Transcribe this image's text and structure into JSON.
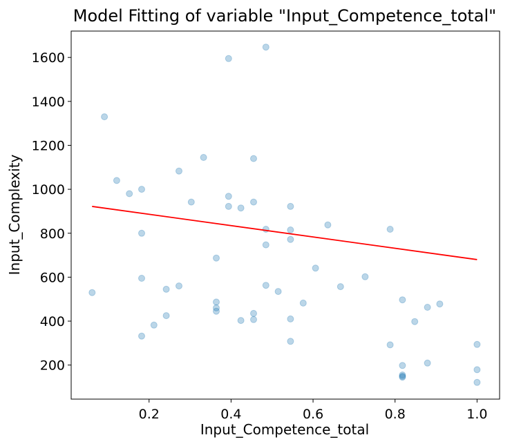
{
  "chart_data": {
    "type": "scatter",
    "title": "Model Fitting of  variable \"Input_Competence_total\"",
    "xlabel": "Input_Competence_total",
    "ylabel": "Input_Complexity",
    "xlim": [
      0.01,
      1.055
    ],
    "ylim": [
      45,
      1720
    ],
    "xticks": [
      0.2,
      0.4,
      0.6,
      0.8,
      1.0
    ],
    "xtick_labels": [
      "0.2",
      "0.4",
      "0.6",
      "0.8",
      "1.0"
    ],
    "yticks": [
      200,
      400,
      600,
      800,
      1000,
      1200,
      1400,
      1600
    ],
    "ytick_labels": [
      "200",
      "400",
      "600",
      "800",
      "1000",
      "1200",
      "1400",
      "1600"
    ],
    "grid": false,
    "points": {
      "x": [
        0.061,
        0.091,
        0.121,
        0.152,
        0.182,
        0.182,
        0.182,
        0.182,
        0.212,
        0.242,
        0.242,
        0.273,
        0.273,
        0.303,
        0.333,
        0.364,
        0.364,
        0.364,
        0.364,
        0.394,
        0.394,
        0.394,
        0.424,
        0.424,
        0.455,
        0.455,
        0.455,
        0.455,
        0.485,
        0.485,
        0.485,
        0.485,
        0.515,
        0.545,
        0.545,
        0.545,
        0.545,
        0.545,
        0.576,
        0.606,
        0.636,
        0.667,
        0.727,
        0.788,
        0.788,
        0.818,
        0.818,
        0.818,
        0.818,
        0.818,
        0.848,
        0.879,
        0.879,
        0.909,
        1.0,
        1.0,
        1.0
      ],
      "y": [
        530,
        1330,
        1040,
        980,
        1000,
        800,
        595,
        332,
        382,
        545,
        425,
        560,
        1083,
        942,
        1145,
        687,
        487,
        460,
        445,
        1595,
        968,
        922,
        915,
        403,
        1140,
        942,
        435,
        407,
        1647,
        818,
        747,
        563,
        535,
        922,
        815,
        772,
        410,
        308,
        482,
        641,
        838,
        557,
        602,
        818,
        292,
        497,
        198,
        155,
        149,
        145,
        398,
        463,
        209,
        478,
        294,
        179,
        121
      ],
      "color": "#1f77b4",
      "alpha": 0.3
    },
    "fit_line": {
      "x": [
        0.061,
        1.0
      ],
      "y": [
        922,
        680
      ],
      "color": "#ff0000"
    }
  }
}
